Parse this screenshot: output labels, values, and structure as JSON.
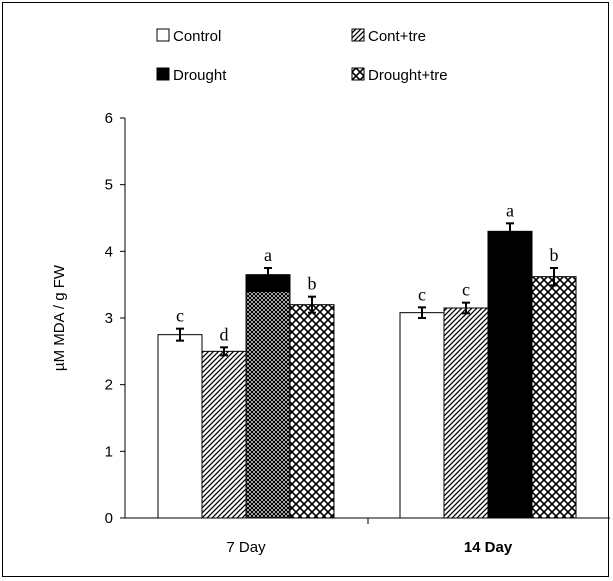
{
  "chart_data": {
    "type": "bar",
    "categories": [
      "7 Day",
      "14 Day"
    ],
    "category_bold": [
      false,
      true
    ],
    "series": [
      {
        "name": "Control",
        "pattern": "solid-white",
        "values": [
          2.75,
          3.08
        ],
        "errors": [
          0.09,
          0.08
        ],
        "letters": [
          "c",
          "c"
        ]
      },
      {
        "name": "Cont+tre",
        "pattern": "diagonal",
        "values": [
          2.5,
          3.15
        ],
        "errors": [
          0.06,
          0.08
        ],
        "letters": [
          "d",
          "c"
        ]
      },
      {
        "name": "Drought",
        "pattern": "solid-black",
        "values": [
          3.65,
          4.3
        ],
        "errors": [
          0.1,
          0.12
        ],
        "letters": [
          "a",
          "a"
        ]
      },
      {
        "name": "Drought+tre",
        "pattern": "crosshatch",
        "values": [
          3.2,
          3.62
        ],
        "errors": [
          0.12,
          0.13
        ],
        "letters": [
          "b",
          "b"
        ]
      }
    ],
    "overlay_note": "7 Day Drought bar is black on top with dense cross-hatch below (~3.4)",
    "overlay_value": 3.4,
    "ylim": [
      0,
      6
    ],
    "yticks": [
      "0",
      "1",
      "2",
      "3",
      "4",
      "5",
      "6"
    ],
    "ytick_values": [
      0,
      1,
      2,
      3,
      4,
      5,
      6
    ],
    "ylabel": "µM MDA / g FW",
    "xlabel": "",
    "legend_position": "top",
    "colors": {
      "black": "#000000",
      "white": "#ffffff"
    }
  }
}
